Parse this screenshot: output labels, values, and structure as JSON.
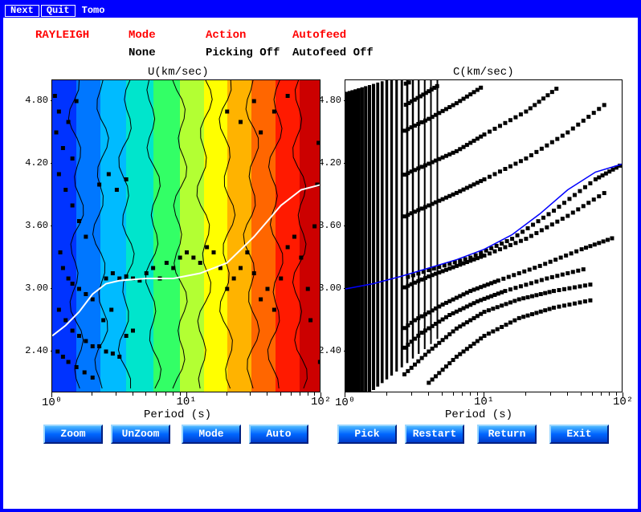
{
  "title_buttons": {
    "next": "Next",
    "quit": "Quit",
    "tomo": "Tomo"
  },
  "header": {
    "labels": {
      "type": "RAYLEIGH",
      "mode": "Mode",
      "action": "Action",
      "autofeed": "Autofeed"
    },
    "values": {
      "type": "",
      "mode": "None",
      "action": "Picking Off",
      "autofeed": "Autofeed Off"
    }
  },
  "left_plot": {
    "title": "U(km/sec)",
    "xlabel": "Period (s)",
    "type": "contour",
    "xscale": "log",
    "xlim": [
      1,
      100
    ],
    "ylim": [
      2.0,
      5.0
    ],
    "yticks": [
      2.4,
      3.0,
      3.6,
      4.2,
      4.8
    ],
    "xticks": [
      1,
      10,
      100
    ],
    "xtick_labels": [
      "10⁰",
      "10¹",
      "10²"
    ],
    "background": "#ffffff",
    "colorscale_hex": [
      "#0033ff",
      "#0077ff",
      "#00bbff",
      "#00e5cc",
      "#33ff66",
      "#b3ff33",
      "#ffff00",
      "#ffb300",
      "#ff6600",
      "#ff1a00",
      "#cc0000"
    ],
    "band_edges_x_log10": [
      0.0,
      0.18,
      0.36,
      0.55,
      0.75,
      0.95,
      1.13,
      1.3,
      1.48,
      1.66,
      1.84,
      2.0
    ],
    "marker_color": "#000000",
    "curve_color": "#ffffff",
    "curve_points": [
      [
        0.0,
        2.55
      ],
      [
        0.1,
        2.65
      ],
      [
        0.2,
        2.78
      ],
      [
        0.3,
        2.95
      ],
      [
        0.4,
        3.05
      ],
      [
        0.5,
        3.08
      ],
      [
        0.7,
        3.1
      ],
      [
        0.9,
        3.1
      ],
      [
        1.1,
        3.15
      ],
      [
        1.3,
        3.25
      ],
      [
        1.5,
        3.5
      ],
      [
        1.7,
        3.8
      ],
      [
        1.85,
        3.95
      ],
      [
        2.0,
        4.0
      ]
    ],
    "scatter_points": [
      [
        0.02,
        4.85
      ],
      [
        0.05,
        4.7
      ],
      [
        0.03,
        4.5
      ],
      [
        0.08,
        4.35
      ],
      [
        0.15,
        4.25
      ],
      [
        0.12,
        4.6
      ],
      [
        0.18,
        4.8
      ],
      [
        0.05,
        4.1
      ],
      [
        0.1,
        3.95
      ],
      [
        0.15,
        3.8
      ],
      [
        0.2,
        3.65
      ],
      [
        0.25,
        3.5
      ],
      [
        0.06,
        3.35
      ],
      [
        0.08,
        3.2
      ],
      [
        0.12,
        3.1
      ],
      [
        0.15,
        3.05
      ],
      [
        0.2,
        3.0
      ],
      [
        0.25,
        2.95
      ],
      [
        0.3,
        2.9
      ],
      [
        0.05,
        2.8
      ],
      [
        0.1,
        2.7
      ],
      [
        0.15,
        2.6
      ],
      [
        0.2,
        2.55
      ],
      [
        0.25,
        2.5
      ],
      [
        0.3,
        2.45
      ],
      [
        0.04,
        2.4
      ],
      [
        0.08,
        2.35
      ],
      [
        0.12,
        2.3
      ],
      [
        0.18,
        2.25
      ],
      [
        0.24,
        2.2
      ],
      [
        0.3,
        2.15
      ],
      [
        0.35,
        2.45
      ],
      [
        0.4,
        2.4
      ],
      [
        0.45,
        2.38
      ],
      [
        0.5,
        2.35
      ],
      [
        0.55,
        2.55
      ],
      [
        0.6,
        2.6
      ],
      [
        0.4,
        3.1
      ],
      [
        0.45,
        3.15
      ],
      [
        0.5,
        3.1
      ],
      [
        0.55,
        3.12
      ],
      [
        0.6,
        3.1
      ],
      [
        0.65,
        3.08
      ],
      [
        0.7,
        3.15
      ],
      [
        0.75,
        3.2
      ],
      [
        0.8,
        3.1
      ],
      [
        0.85,
        3.25
      ],
      [
        0.9,
        3.2
      ],
      [
        0.95,
        3.3
      ],
      [
        1.0,
        3.35
      ],
      [
        1.05,
        3.3
      ],
      [
        1.1,
        3.25
      ],
      [
        1.15,
        3.4
      ],
      [
        1.2,
        3.35
      ],
      [
        1.25,
        3.2
      ],
      [
        1.3,
        3.0
      ],
      [
        1.35,
        3.1
      ],
      [
        1.4,
        3.2
      ],
      [
        1.45,
        3.35
      ],
      [
        1.5,
        3.15
      ],
      [
        1.55,
        2.9
      ],
      [
        1.6,
        3.0
      ],
      [
        1.65,
        2.8
      ],
      [
        1.7,
        3.1
      ],
      [
        1.75,
        3.4
      ],
      [
        1.8,
        3.5
      ],
      [
        1.85,
        3.3
      ],
      [
        1.9,
        3.0
      ],
      [
        1.92,
        2.7
      ],
      [
        1.95,
        3.6
      ],
      [
        1.97,
        4.0
      ],
      [
        1.98,
        4.4
      ],
      [
        1.99,
        2.3
      ],
      [
        1.3,
        4.7
      ],
      [
        1.4,
        4.6
      ],
      [
        1.5,
        4.8
      ],
      [
        1.55,
        4.5
      ],
      [
        1.65,
        4.7
      ],
      [
        1.75,
        4.85
      ],
      [
        0.35,
        4.0
      ],
      [
        0.42,
        4.1
      ],
      [
        0.48,
        3.95
      ],
      [
        0.55,
        4.05
      ],
      [
        0.38,
        2.7
      ],
      [
        0.44,
        2.8
      ]
    ]
  },
  "right_plot": {
    "title": "C(km/sec)",
    "xlabel": "Period (s)",
    "type": "scatter",
    "xscale": "log",
    "xlim": [
      1,
      100
    ],
    "ylim": [
      2.0,
      5.0
    ],
    "yticks": [
      2.4,
      3.0,
      3.6,
      4.2,
      4.8
    ],
    "xticks": [
      1,
      10,
      100
    ],
    "xtick_labels": [
      "10⁰",
      "10¹",
      "10²"
    ],
    "background": "#ffffff",
    "marker_color": "#000000",
    "marker_size": 5,
    "curve_color": "#0000ff",
    "curve_points": [
      [
        0.0,
        3.0
      ],
      [
        0.2,
        3.05
      ],
      [
        0.4,
        3.12
      ],
      [
        0.6,
        3.2
      ],
      [
        0.8,
        3.28
      ],
      [
        1.0,
        3.38
      ],
      [
        1.2,
        3.52
      ],
      [
        1.4,
        3.72
      ],
      [
        1.6,
        3.95
      ],
      [
        1.8,
        4.12
      ],
      [
        2.0,
        4.2
      ]
    ],
    "dispersion_curves": [
      [
        [
          0.0,
          2.95
        ],
        [
          0.3,
          3.05
        ],
        [
          0.6,
          3.18
        ],
        [
          0.9,
          3.3
        ],
        [
          1.2,
          3.48
        ],
        [
          1.5,
          3.75
        ],
        [
          1.8,
          4.05
        ],
        [
          2.0,
          4.2
        ]
      ],
      [
        [
          0.0,
          2.7
        ],
        [
          0.2,
          2.85
        ],
        [
          0.4,
          3.0
        ],
        [
          0.6,
          3.12
        ],
        [
          0.8,
          3.22
        ],
        [
          1.0,
          3.32
        ],
        [
          1.3,
          3.48
        ],
        [
          1.6,
          3.7
        ],
        [
          1.9,
          3.95
        ]
      ],
      [
        [
          0.0,
          3.4
        ],
        [
          0.2,
          3.55
        ],
        [
          0.4,
          3.68
        ],
        [
          0.6,
          3.8
        ],
        [
          0.8,
          3.92
        ],
        [
          1.0,
          4.05
        ],
        [
          1.3,
          4.25
        ],
        [
          1.6,
          4.5
        ],
        [
          1.9,
          4.8
        ]
      ],
      [
        [
          0.0,
          3.8
        ],
        [
          0.2,
          3.95
        ],
        [
          0.4,
          4.08
        ],
        [
          0.6,
          4.2
        ],
        [
          0.8,
          4.32
        ],
        [
          1.0,
          4.48
        ],
        [
          1.3,
          4.7
        ],
        [
          1.55,
          4.95
        ]
      ],
      [
        [
          0.0,
          4.25
        ],
        [
          0.2,
          4.38
        ],
        [
          0.4,
          4.5
        ],
        [
          0.6,
          4.63
        ],
        [
          0.8,
          4.78
        ],
        [
          1.0,
          4.95
        ]
      ],
      [
        [
          0.0,
          4.65
        ],
        [
          0.15,
          4.78
        ],
        [
          0.3,
          4.9
        ],
        [
          0.42,
          4.99
        ]
      ],
      [
        [
          0.1,
          2.3
        ],
        [
          0.3,
          2.5
        ],
        [
          0.5,
          2.7
        ],
        [
          0.7,
          2.85
        ],
        [
          0.9,
          2.98
        ],
        [
          1.1,
          3.08
        ],
        [
          1.4,
          3.22
        ],
        [
          1.7,
          3.38
        ],
        [
          1.95,
          3.5
        ]
      ],
      [
        [
          0.15,
          2.1
        ],
        [
          0.35,
          2.35
        ],
        [
          0.55,
          2.58
        ],
        [
          0.75,
          2.75
        ],
        [
          0.95,
          2.88
        ],
        [
          1.15,
          2.98
        ],
        [
          1.45,
          3.1
        ],
        [
          1.75,
          3.2
        ]
      ],
      [
        [
          0.4,
          2.15
        ],
        [
          0.6,
          2.4
        ],
        [
          0.8,
          2.62
        ],
        [
          1.0,
          2.78
        ],
        [
          1.25,
          2.9
        ],
        [
          1.5,
          2.98
        ],
        [
          1.8,
          3.05
        ]
      ],
      [
        [
          0.6,
          2.1
        ],
        [
          0.8,
          2.35
        ],
        [
          1.0,
          2.55
        ],
        [
          1.25,
          2.72
        ],
        [
          1.5,
          2.82
        ],
        [
          1.8,
          2.9
        ]
      ],
      [
        [
          0.0,
          4.95
        ],
        [
          0.1,
          4.99
        ]
      ],
      [
        [
          0.3,
          4.9
        ],
        [
          0.48,
          4.99
        ]
      ],
      [
        [
          0.0,
          4.45
        ],
        [
          0.18,
          4.58
        ],
        [
          0.35,
          4.7
        ],
        [
          0.52,
          4.83
        ],
        [
          0.68,
          4.96
        ]
      ]
    ],
    "dense_fill_x_max_log10": 0.7
  },
  "buttons": {
    "zoom": "Zoom",
    "unzoom": "UnZoom",
    "mode": "Mode",
    "auto": "Auto",
    "pick": "Pick",
    "restart": "Restart",
    "return": "Return",
    "exit": "Exit"
  },
  "colors": {
    "frame": "#0000ff",
    "header_label": "#ff0000",
    "text": "#000000",
    "button_bg": "#0066ff",
    "button_text": "#ffffff"
  }
}
